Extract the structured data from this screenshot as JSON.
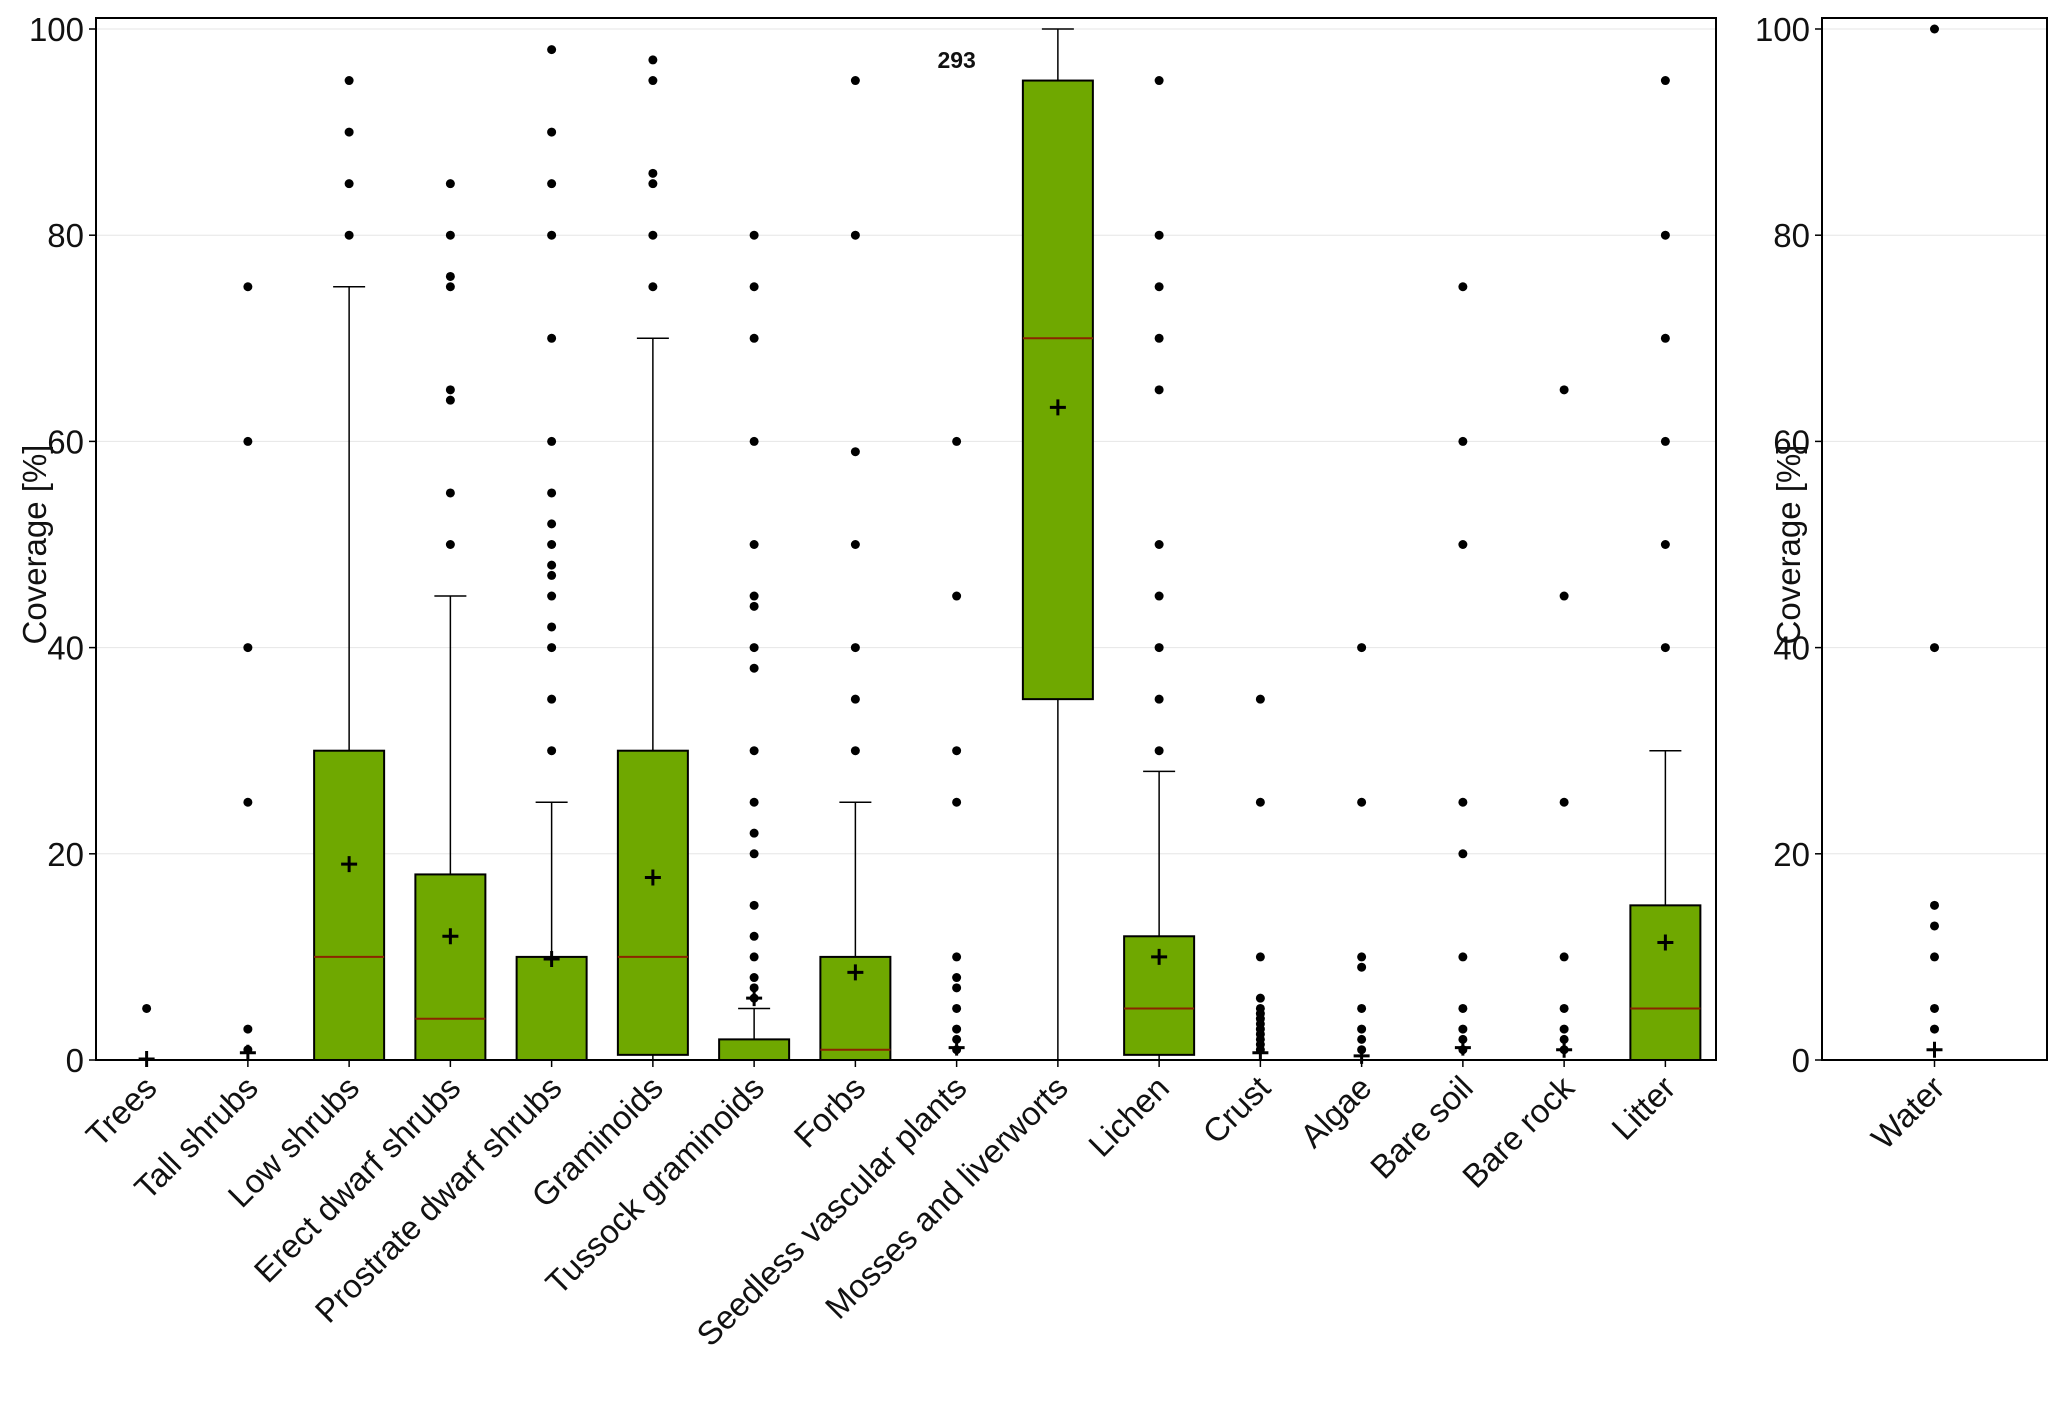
{
  "chart_data": [
    {
      "type": "box",
      "title": "",
      "xlabel": "",
      "ylabel": "Coverage [%]",
      "ylim": [
        0,
        100
      ],
      "yticks": [
        "0",
        "20",
        "40",
        "60",
        "80",
        "100"
      ],
      "grid": "horizontal",
      "annotation": {
        "text": "293",
        "category": "Seedless vascular plants",
        "y": 97
      },
      "colors": {
        "box_fill": "#6fa800",
        "median": "#8b2500",
        "outline": "#000000",
        "points": "#000000"
      },
      "categories": [
        "Trees",
        "Tall shrubs",
        "Low shrubs",
        "Erect dwarf shrubs",
        "Prostrate dwarf shrubs",
        "Graminoids",
        "Tussock graminoids",
        "Forbs",
        "Seedless vascular plants",
        "Mosses and liverworts",
        "Lichen",
        "Crust",
        "Algae",
        "Bare soil",
        "Bare rock",
        "Litter"
      ],
      "boxes": [
        {
          "category": "Trees",
          "q1": 0,
          "median": 0,
          "q3": 0,
          "whisker_low": 0,
          "whisker_high": 0,
          "mean": 0.1,
          "outliers": [
            5
          ]
        },
        {
          "category": "Tall shrubs",
          "q1": 0,
          "median": 0,
          "q3": 0,
          "whisker_low": 0,
          "whisker_high": 0,
          "mean": 0.7,
          "outliers": [
            75,
            60,
            40,
            25,
            3,
            1
          ]
        },
        {
          "category": "Low shrubs",
          "q1": 0,
          "median": 10,
          "q3": 30,
          "whisker_low": 0,
          "whisker_high": 75,
          "mean": 19,
          "outliers": [
            95,
            90,
            85,
            80
          ]
        },
        {
          "category": "Erect dwarf shrubs",
          "q1": 0,
          "median": 4,
          "q3": 18,
          "whisker_low": 0,
          "whisker_high": 45,
          "mean": 12,
          "outliers": [
            85,
            80,
            76,
            75,
            65,
            64,
            55,
            50
          ]
        },
        {
          "category": "Prostrate dwarf shrubs",
          "q1": 0,
          "median": 0,
          "q3": 10,
          "whisker_low": 0,
          "whisker_high": 25,
          "mean": 9.8,
          "outliers": [
            98,
            90,
            85,
            80,
            70,
            60,
            55,
            52,
            50,
            48,
            47,
            45,
            42,
            40,
            35,
            30
          ]
        },
        {
          "category": "Graminoids",
          "q1": 0.5,
          "median": 10,
          "q3": 30,
          "whisker_low": 0,
          "whisker_high": 70,
          "mean": 17.7,
          "outliers": [
            97,
            95,
            86,
            85,
            80,
            75
          ]
        },
        {
          "category": "Tussock graminoids",
          "q1": 0,
          "median": 0,
          "q3": 2,
          "whisker_low": 0,
          "whisker_high": 5,
          "mean": 6,
          "outliers": [
            80,
            75,
            70,
            60,
            50,
            45,
            44,
            40,
            38,
            30,
            25,
            22,
            20,
            15,
            12,
            10,
            8,
            7,
            6
          ]
        },
        {
          "category": "Forbs",
          "q1": 0,
          "median": 1,
          "q3": 10,
          "whisker_low": 0,
          "whisker_high": 25,
          "mean": 8.5,
          "outliers": [
            95,
            80,
            59,
            50,
            40,
            35,
            30
          ]
        },
        {
          "category": "Seedless vascular plants",
          "q1": 0,
          "median": 0,
          "q3": 0,
          "whisker_low": 0,
          "whisker_high": 0,
          "mean": 1.2,
          "outliers": [
            60,
            45,
            30,
            25,
            10,
            8,
            7,
            5,
            3,
            2,
            1
          ]
        },
        {
          "category": "Mosses and liverworts",
          "q1": 35,
          "median": 70,
          "q3": 95,
          "whisker_low": 0,
          "whisker_high": 100,
          "mean": 63.3,
          "outliers": []
        },
        {
          "category": "Lichen",
          "q1": 0.5,
          "median": 5,
          "q3": 12,
          "whisker_low": 0,
          "whisker_high": 28,
          "mean": 10,
          "outliers": [
            95,
            80,
            75,
            70,
            65,
            50,
            45,
            40,
            35,
            30
          ]
        },
        {
          "category": "Crust",
          "q1": 0,
          "median": 0,
          "q3": 0,
          "whisker_low": 0,
          "whisker_high": 0,
          "mean": 0.7,
          "outliers": [
            35,
            25,
            10,
            6,
            5,
            4.5,
            4,
            3.5,
            3,
            2.5,
            2,
            1.5,
            1
          ]
        },
        {
          "category": "Algae",
          "q1": 0,
          "median": 0,
          "q3": 0,
          "whisker_low": 0,
          "whisker_high": 0,
          "mean": 0.4,
          "outliers": [
            40,
            25,
            10,
            9,
            5,
            3,
            2,
            1
          ]
        },
        {
          "category": "Bare soil",
          "q1": 0,
          "median": 0,
          "q3": 0,
          "whisker_low": 0,
          "whisker_high": 0,
          "mean": 1.2,
          "outliers": [
            75,
            60,
            50,
            25,
            20,
            10,
            5,
            3,
            2,
            1
          ]
        },
        {
          "category": "Bare rock",
          "q1": 0,
          "median": 0,
          "q3": 0,
          "whisker_low": 0,
          "whisker_high": 0,
          "mean": 1,
          "outliers": [
            65,
            45,
            25,
            10,
            5,
            3,
            2,
            1
          ]
        },
        {
          "category": "Litter",
          "q1": 0,
          "median": 5,
          "q3": 15,
          "whisker_low": 0,
          "whisker_high": 30,
          "mean": 11.4,
          "outliers": [
            95,
            80,
            70,
            60,
            50,
            40
          ]
        }
      ]
    },
    {
      "type": "box",
      "title": "",
      "xlabel": "",
      "ylabel": "Coverage [%]",
      "ylim": [
        0,
        100
      ],
      "yticks": [
        "0",
        "20",
        "40",
        "60",
        "80",
        "100"
      ],
      "grid": "horizontal",
      "categories": [
        "Water"
      ],
      "boxes": [
        {
          "category": "Water",
          "q1": 0,
          "median": 0,
          "q3": 0,
          "whisker_low": 0,
          "whisker_high": 0,
          "mean": 1,
          "outliers": [
            100,
            40,
            15,
            13,
            10,
            5,
            3
          ]
        }
      ]
    }
  ]
}
